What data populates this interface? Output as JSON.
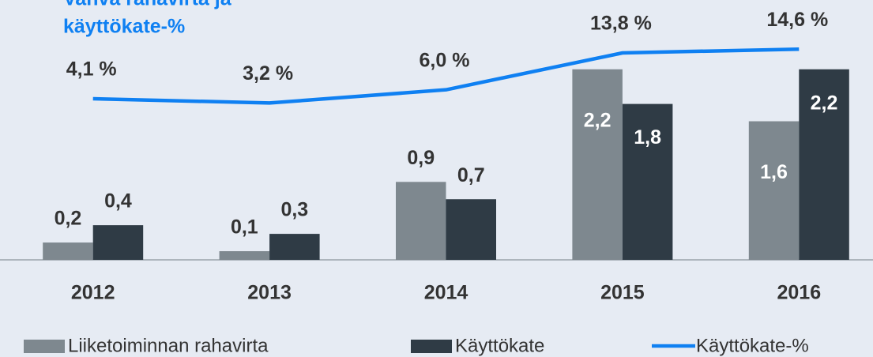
{
  "chart_data": {
    "type": "bar",
    "title": [
      "Vahva rahavirta ja",
      "käyttökate-%"
    ],
    "categories": [
      "2012",
      "2013",
      "2014",
      "2015",
      "2016"
    ],
    "series": [
      {
        "name": "Liiketoiminnan rahavirta",
        "color": "#7e888f",
        "values": [
          0.2,
          0.1,
          0.9,
          2.2,
          1.6
        ],
        "value_labels": [
          "0,2",
          "0,1",
          "0,9",
          "2,2",
          "1,6"
        ]
      },
      {
        "name": "Käyttökate",
        "color": "#2f3b45",
        "values": [
          0.4,
          0.3,
          0.7,
          1.8,
          2.2
        ],
        "value_labels": [
          "0,4",
          "0,3",
          "0,7",
          "1,8",
          "2,2"
        ]
      },
      {
        "name": "Käyttökate-%",
        "type": "line",
        "axis": "y2",
        "color": "#0f80f2",
        "values": [
          4.1,
          3.2,
          6.0,
          13.8,
          14.6
        ],
        "value_labels": [
          "4,1 %",
          "3,2 %",
          "6,0 %",
          "13,8 %",
          "14,6 %"
        ]
      }
    ],
    "ylim": [
      0,
      3
    ],
    "y2lim": [
      -30,
      25
    ]
  }
}
